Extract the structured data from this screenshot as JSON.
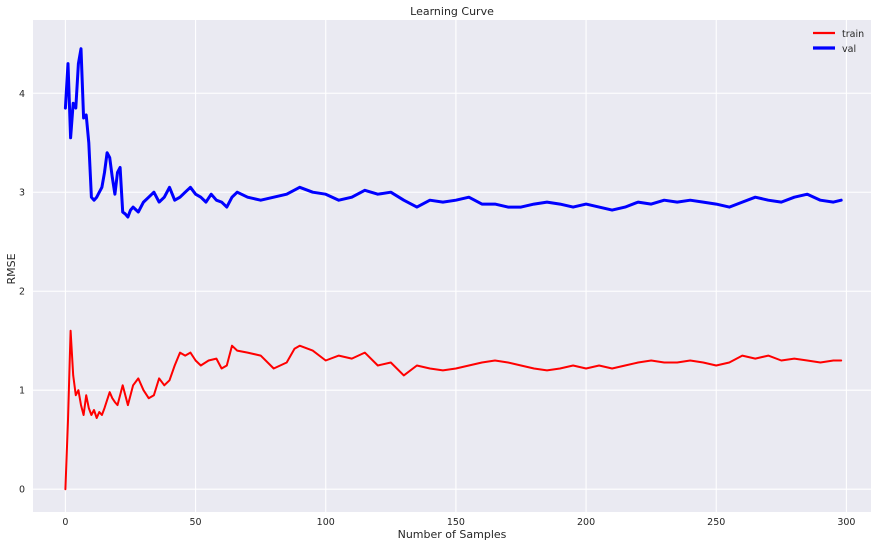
{
  "chart_data": {
    "type": "line",
    "title": "Learning Curve",
    "xlabel": "Number of Samples",
    "ylabel": "RMSE",
    "xlim": [
      -12.45,
      309.45
    ],
    "ylim": [
      -0.23,
      4.74
    ],
    "xticks": [
      0,
      50,
      100,
      150,
      200,
      250,
      300
    ],
    "yticks": [
      0,
      1,
      2,
      3,
      4
    ],
    "grid": true,
    "legend_position": "top-right",
    "series": [
      {
        "name": "train",
        "color": "#ff0000",
        "x": [
          0,
          1,
          2,
          3,
          4,
          5,
          6,
          7,
          8,
          9,
          10,
          11,
          12,
          13,
          14,
          15,
          16,
          17,
          18,
          19,
          20,
          22,
          24,
          26,
          28,
          30,
          32,
          34,
          36,
          38,
          40,
          42,
          44,
          46,
          48,
          50,
          52,
          55,
          58,
          60,
          62,
          64,
          66,
          70,
          75,
          80,
          85,
          88,
          90,
          95,
          100,
          105,
          110,
          115,
          120,
          125,
          130,
          135,
          140,
          145,
          150,
          155,
          160,
          165,
          170,
          175,
          180,
          185,
          190,
          195,
          200,
          205,
          210,
          215,
          220,
          225,
          230,
          235,
          240,
          245,
          250,
          255,
          260,
          265,
          270,
          275,
          280,
          285,
          290,
          295,
          298
        ],
        "values": [
          0.0,
          0.7,
          1.6,
          1.15,
          0.95,
          1.0,
          0.85,
          0.75,
          0.95,
          0.82,
          0.75,
          0.8,
          0.72,
          0.78,
          0.75,
          0.82,
          0.9,
          0.98,
          0.92,
          0.88,
          0.85,
          1.05,
          0.85,
          1.05,
          1.12,
          1.0,
          0.92,
          0.95,
          1.12,
          1.05,
          1.1,
          1.25,
          1.38,
          1.35,
          1.38,
          1.3,
          1.25,
          1.3,
          1.32,
          1.22,
          1.25,
          1.45,
          1.4,
          1.38,
          1.35,
          1.22,
          1.28,
          1.42,
          1.45,
          1.4,
          1.3,
          1.35,
          1.32,
          1.38,
          1.25,
          1.28,
          1.15,
          1.25,
          1.22,
          1.2,
          1.22,
          1.25,
          1.28,
          1.3,
          1.28,
          1.25,
          1.22,
          1.2,
          1.22,
          1.25,
          1.22,
          1.25,
          1.22,
          1.25,
          1.28,
          1.3,
          1.28,
          1.28,
          1.3,
          1.28,
          1.25,
          1.28,
          1.35,
          1.32,
          1.35,
          1.3,
          1.32,
          1.3,
          1.28,
          1.3,
          1.3
        ]
      },
      {
        "name": "val",
        "color": "#0000ff",
        "x": [
          0,
          1,
          2,
          3,
          4,
          5,
          6,
          7,
          8,
          9,
          10,
          11,
          12,
          13,
          14,
          15,
          16,
          17,
          18,
          19,
          20,
          21,
          22,
          23,
          24,
          25,
          26,
          28,
          30,
          32,
          34,
          36,
          38,
          40,
          42,
          44,
          46,
          48,
          50,
          52,
          54,
          56,
          58,
          60,
          62,
          64,
          66,
          70,
          75,
          80,
          85,
          90,
          95,
          100,
          105,
          110,
          115,
          120,
          125,
          130,
          135,
          140,
          145,
          150,
          155,
          160,
          165,
          170,
          175,
          180,
          185,
          190,
          195,
          200,
          205,
          210,
          215,
          220,
          225,
          230,
          235,
          240,
          245,
          250,
          255,
          260,
          265,
          270,
          275,
          280,
          285,
          290,
          295,
          298
        ],
        "values": [
          3.85,
          4.3,
          3.55,
          3.9,
          3.85,
          4.3,
          4.45,
          3.75,
          3.78,
          3.5,
          2.95,
          2.92,
          2.95,
          3.0,
          3.05,
          3.2,
          3.4,
          3.35,
          3.15,
          2.98,
          3.2,
          3.25,
          2.8,
          2.78,
          2.75,
          2.82,
          2.85,
          2.8,
          2.9,
          2.95,
          3.0,
          2.9,
          2.95,
          3.05,
          2.92,
          2.95,
          3.0,
          3.05,
          2.98,
          2.95,
          2.9,
          2.98,
          2.92,
          2.9,
          2.85,
          2.95,
          3.0,
          2.95,
          2.92,
          2.95,
          2.98,
          3.05,
          3.0,
          2.98,
          2.92,
          2.95,
          3.02,
          2.98,
          3.0,
          2.92,
          2.85,
          2.92,
          2.9,
          2.92,
          2.95,
          2.88,
          2.88,
          2.85,
          2.85,
          2.88,
          2.9,
          2.88,
          2.85,
          2.88,
          2.85,
          2.82,
          2.85,
          2.9,
          2.88,
          2.92,
          2.9,
          2.92,
          2.9,
          2.88,
          2.85,
          2.9,
          2.95,
          2.92,
          2.9,
          2.95,
          2.98,
          2.92,
          2.9,
          2.92
        ]
      }
    ]
  }
}
